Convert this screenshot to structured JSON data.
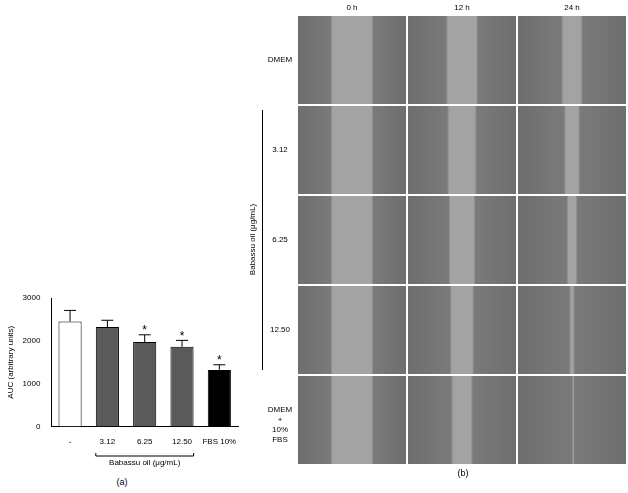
{
  "chart_data": {
    "type": "bar",
    "panel_label": "(a)",
    "y_label": "AUC (arbitrary units)",
    "categories": [
      "-",
      "3.12",
      "6.25",
      "12.50",
      "FBS 10%"
    ],
    "values": [
      2450,
      2320,
      1970,
      1860,
      1320
    ],
    "errors": [
      260,
      160,
      170,
      150,
      120
    ],
    "colors": [
      "#ffffff",
      "#5a5a5a",
      "#5a5a5a",
      "#5a5a5a",
      "#000000"
    ],
    "annotations": [
      {
        "category": "6.25",
        "text": "*"
      },
      {
        "category": "12.50",
        "text": "*"
      },
      {
        "category": "FBS 10%",
        "text": "*"
      }
    ],
    "group": {
      "label": "Babassu oil (μg/mL)",
      "from": "3.12",
      "to": "12.50"
    },
    "ylim": [
      0,
      3000
    ],
    "yticks": [
      0,
      1000,
      2000,
      3000
    ],
    "grid": false,
    "legend": false
  },
  "image_panel": {
    "panel_label": "(b)",
    "columns": [
      "0 h",
      "12 h",
      "24 h"
    ],
    "rows": [
      [
        "DMEM"
      ],
      [
        "3.12"
      ],
      [
        "6.25"
      ],
      [
        "12.50"
      ],
      [
        "DMEM",
        "+",
        "10% FBS"
      ]
    ],
    "group": {
      "label": "Babassu oil (μg/mL)",
      "from": "3.12",
      "to": "12.50"
    }
  }
}
